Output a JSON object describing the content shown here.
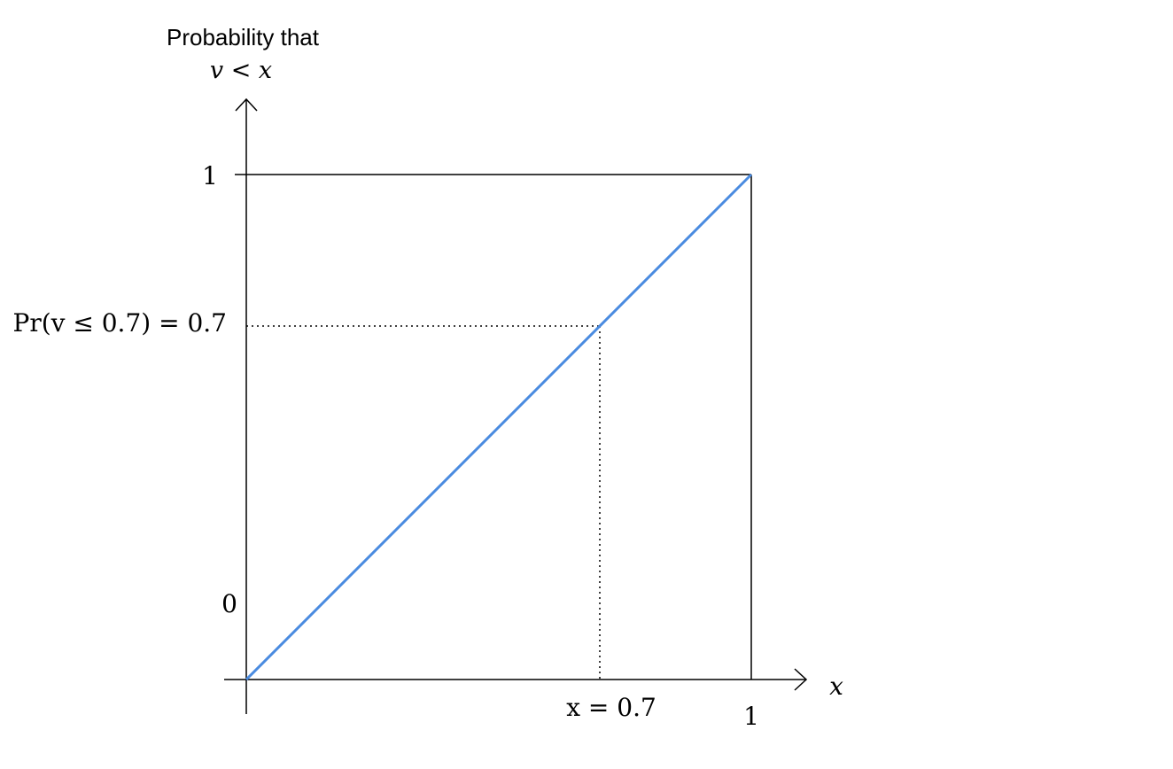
{
  "chart_data": {
    "type": "line",
    "ylabel_line1": "Probability that",
    "ylabel_line2": "v < x",
    "xlabel": "x",
    "y_tick_labels": [
      "0",
      "1"
    ],
    "x_tick_labels": [
      "1"
    ],
    "xlim": [
      0,
      1
    ],
    "ylim": [
      0,
      1
    ],
    "grid": false,
    "series": [
      {
        "x": [
          0,
          1
        ],
        "y": [
          0,
          1
        ],
        "color": "#4a8be0"
      }
    ],
    "annotation": {
      "x": 0.7,
      "y": 0.7,
      "x_label": "x = 0.7",
      "y_label": "Pr(v ≤ 0.7) = 0.7"
    }
  }
}
